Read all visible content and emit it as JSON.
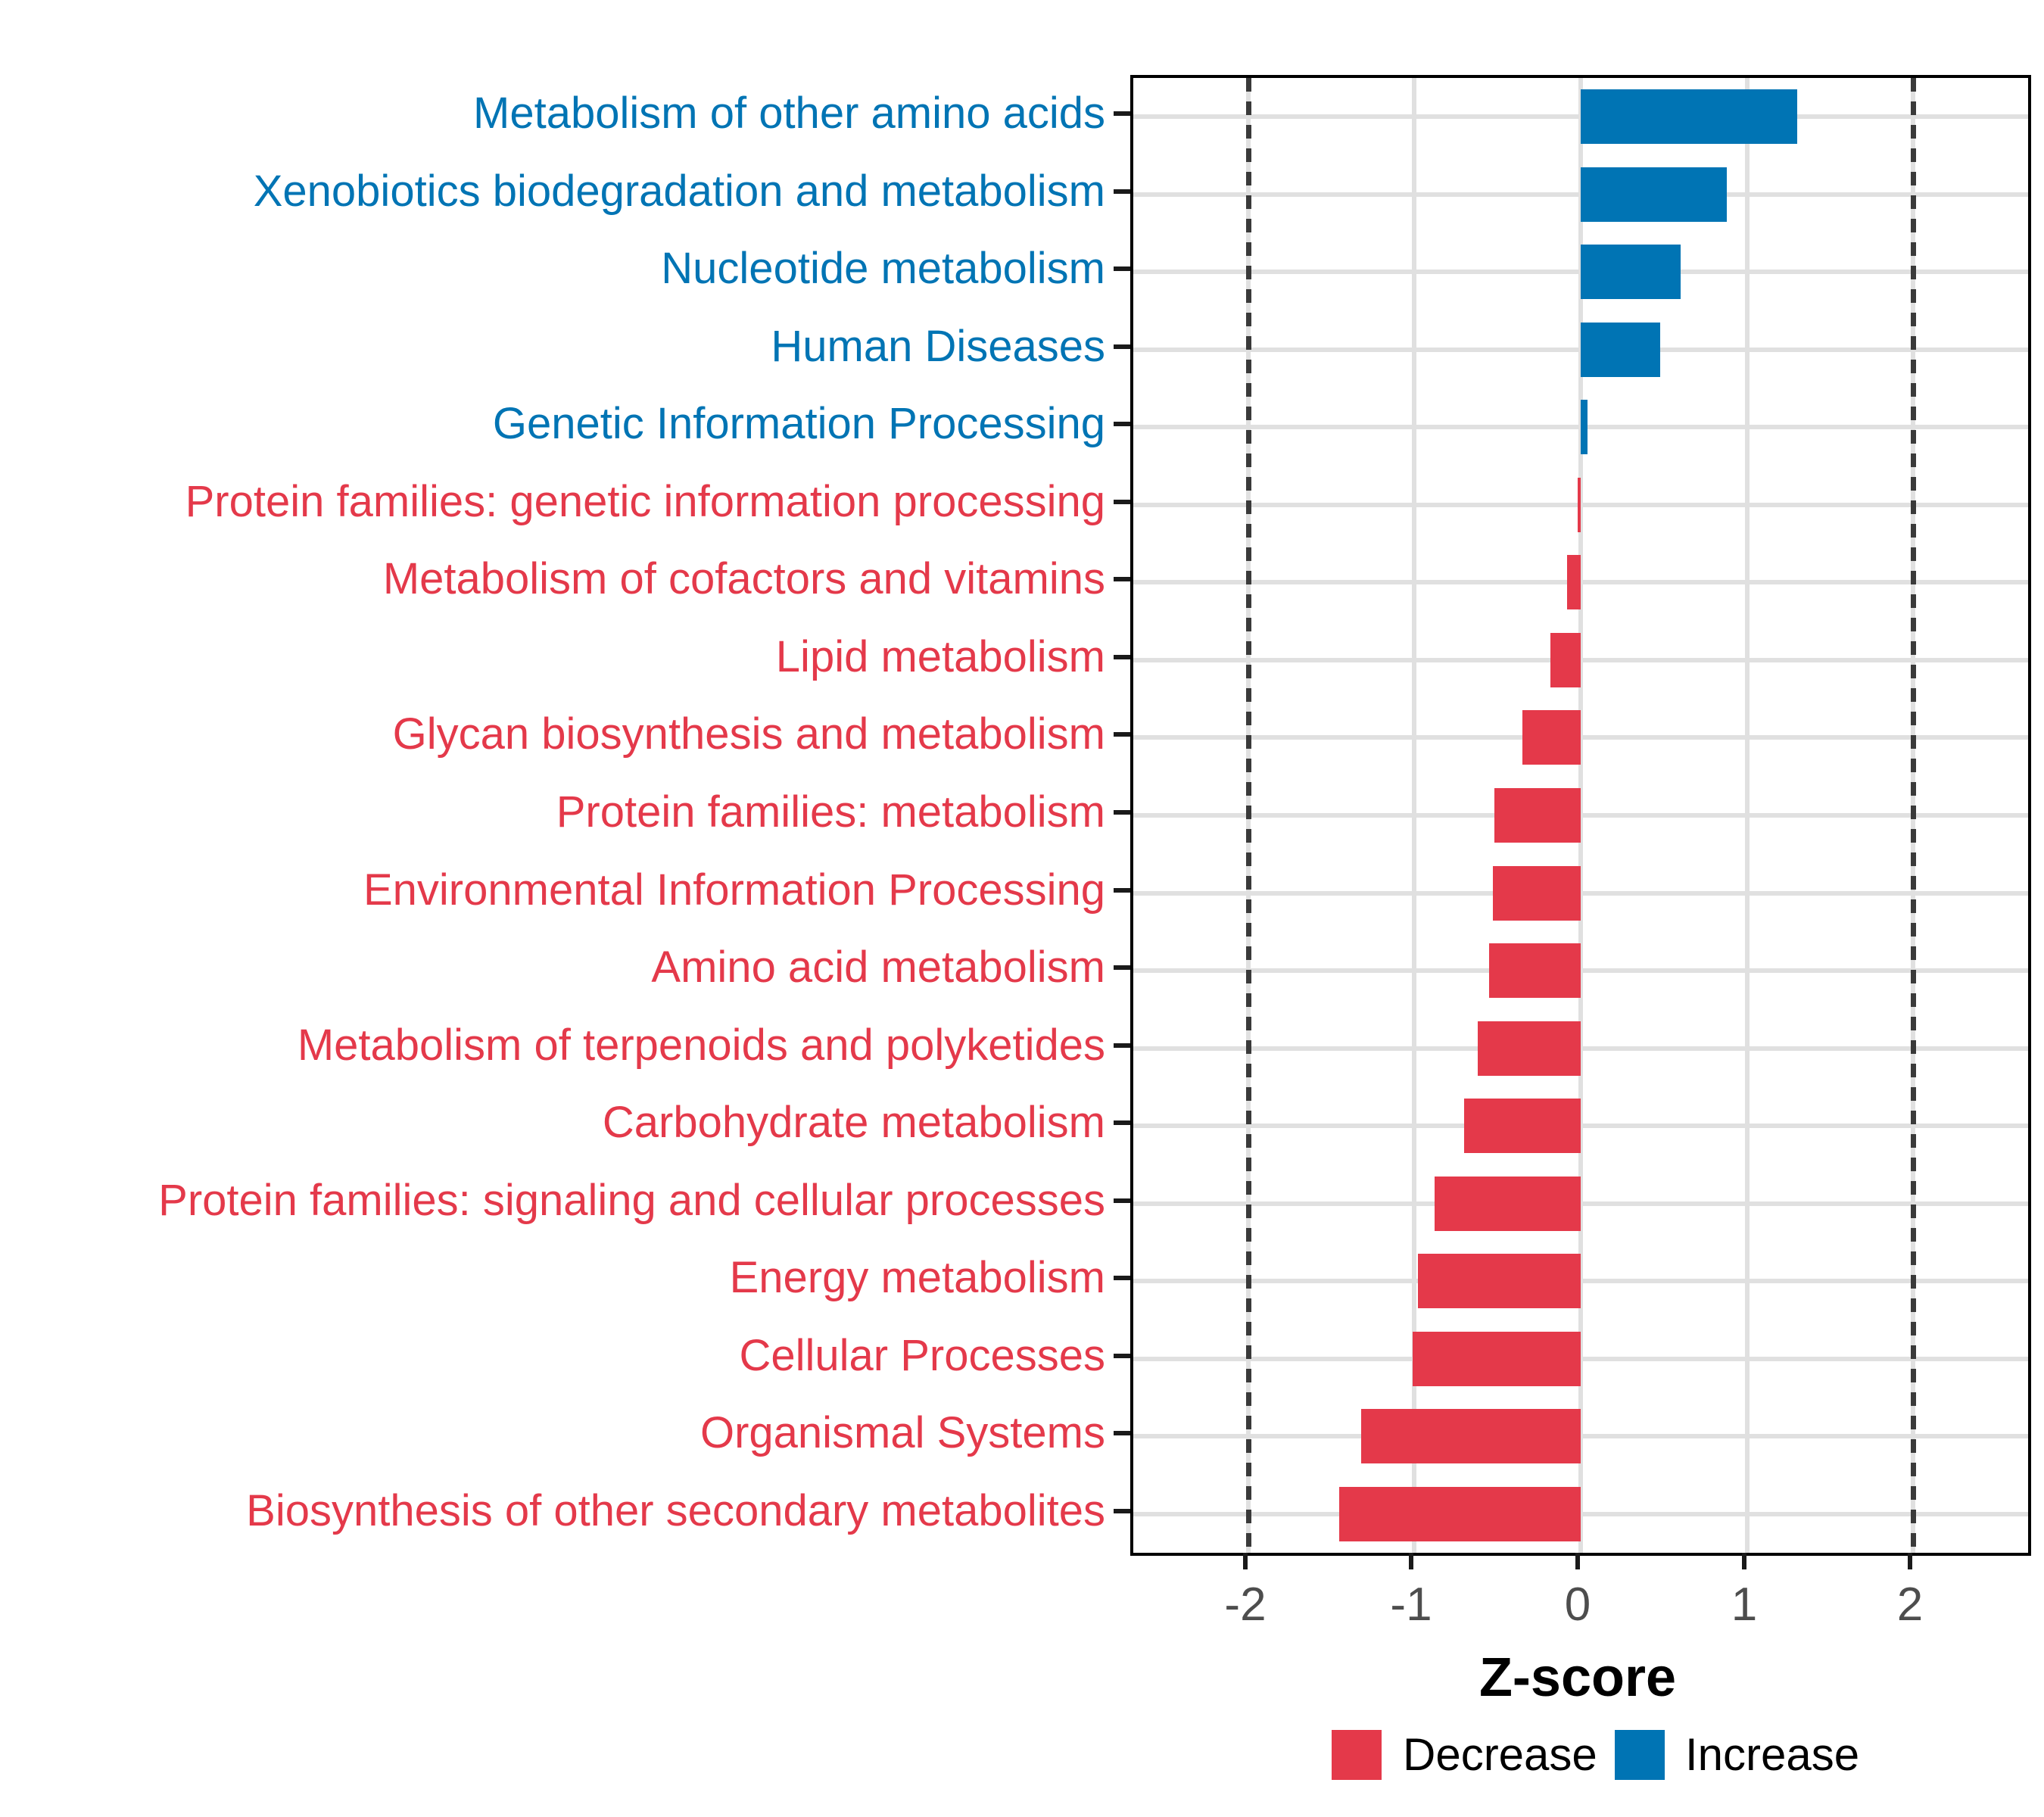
{
  "chart_data": {
    "type": "bar",
    "orientation": "horizontal",
    "title": "",
    "xlabel": "Z-score",
    "xlim": [
      -2.69,
      2.69
    ],
    "x_ticks": [
      "-2",
      "-1",
      "0",
      "1",
      "2"
    ],
    "x_tick_values": [
      -2,
      -1,
      0,
      1,
      2
    ],
    "threshold_line_values": [
      -2,
      2
    ],
    "grid": "major",
    "legend_position": "bottom",
    "categories": [
      "Metabolism of other amino acids",
      "Xenobiotics biodegradation and metabolism",
      "Nucleotide metabolism",
      "Human Diseases",
      "Genetic Information Processing",
      "Protein families: genetic information processing",
      "Metabolism of cofactors and vitamins",
      "Lipid metabolism",
      "Glycan biosynthesis and metabolism",
      "Protein families: metabolism",
      "Environmental Information Processing",
      "Amino acid metabolism",
      "Metabolism of terpenoids and polyketides",
      "Carbohydrate metabolism",
      "Protein families: signaling and cellular processes",
      "Energy metabolism",
      "Cellular Processes",
      "Organismal Systems",
      "Biosynthesis of other secondary metabolites"
    ],
    "values": [
      1.3,
      0.88,
      0.6,
      0.48,
      0.04,
      -0.02,
      -0.08,
      -0.18,
      -0.35,
      -0.52,
      -0.53,
      -0.55,
      -0.62,
      -0.7,
      -0.88,
      -0.98,
      -1.01,
      -1.32,
      -1.45
    ],
    "directions": [
      "Increase",
      "Increase",
      "Increase",
      "Increase",
      "Increase",
      "Decrease",
      "Decrease",
      "Decrease",
      "Decrease",
      "Decrease",
      "Decrease",
      "Decrease",
      "Decrease",
      "Decrease",
      "Decrease",
      "Decrease",
      "Decrease",
      "Decrease",
      "Decrease"
    ],
    "legend": [
      {
        "label": "Decrease",
        "color": "#E4394A"
      },
      {
        "label": "Increase",
        "color": "#0074B4"
      }
    ],
    "colors": {
      "decrease": "#E4394A",
      "increase": "#0074B4",
      "gridline": "#E0E0E0",
      "threshold_line": "#3A3A3A",
      "axis_tick_text": "#4D4D4D",
      "panel_border": "#000000",
      "axis_title_text": "#000000"
    }
  }
}
